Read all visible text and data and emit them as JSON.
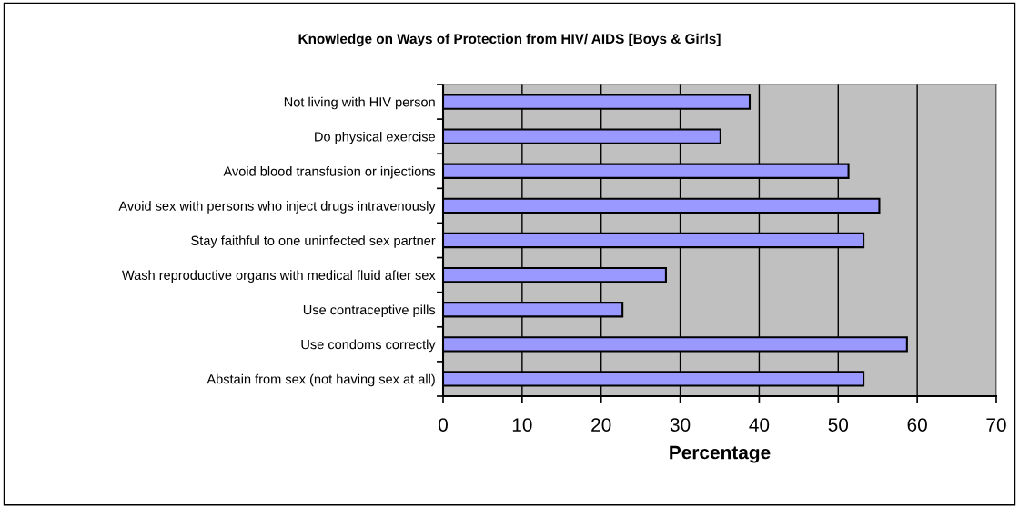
{
  "chart_data": {
    "type": "bar",
    "orientation": "horizontal",
    "title": "Knowledge on Ways of Protection from HIV/ AIDS [Boys & Girls]",
    "xlabel": "Percentage",
    "categories": [
      "Not living with HIV person",
      "Do physical exercise",
      "Avoid blood transfusion or injections",
      "Avoid sex with persons who inject drugs intravenously",
      "Stay faithful to one uninfected sex partner",
      "Wash reproductive organs with medical fluid after sex",
      "Use contraceptive pills",
      "Use condoms correctly",
      "Abstain from sex (not having sex at all)"
    ],
    "values": [
      38.8,
      35.1,
      51.3,
      55.2,
      53.2,
      28.2,
      22.7,
      58.7,
      53.2
    ],
    "color": "#9999ff",
    "xlim": [
      0,
      70
    ],
    "xticks": [
      0,
      10,
      20,
      30,
      40,
      50,
      60,
      70
    ],
    "grid": "x"
  }
}
